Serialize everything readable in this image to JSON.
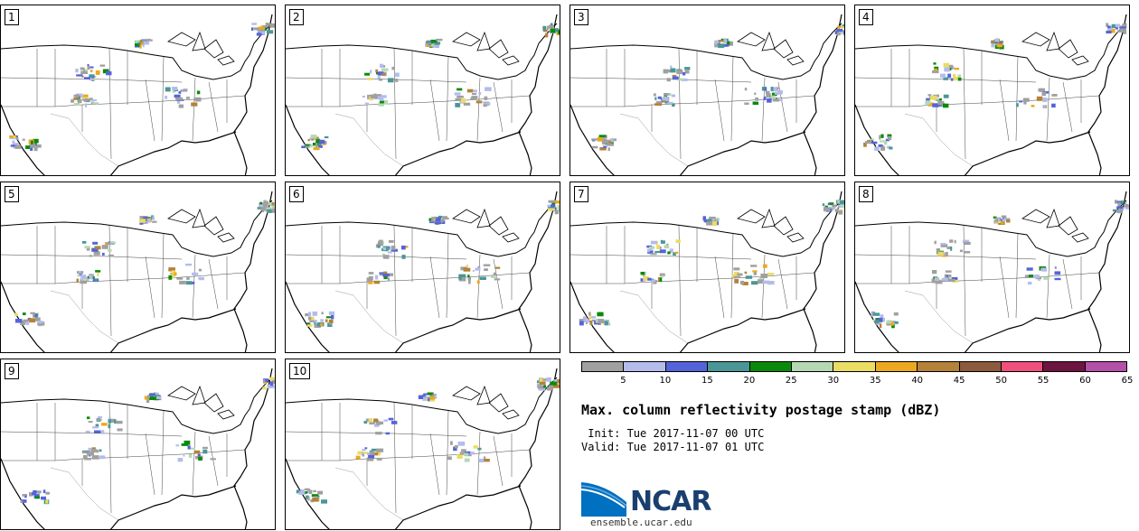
{
  "panels": [
    {
      "number": "1"
    },
    {
      "number": "2"
    },
    {
      "number": "3"
    },
    {
      "number": "4"
    },
    {
      "number": "5"
    },
    {
      "number": "6"
    },
    {
      "number": "7"
    },
    {
      "number": "8"
    },
    {
      "number": "9"
    },
    {
      "number": "10"
    }
  ],
  "colorbar": {
    "colors": [
      "#a0a0a0",
      "#b4bcec",
      "#5464d8",
      "#4a9696",
      "#0a8a0a",
      "#b4d8b4",
      "#ebdc64",
      "#eba820",
      "#b48238",
      "#8c5a3c",
      "#f0507c",
      "#6e1440",
      "#b450a8"
    ],
    "ticks": [
      "5",
      "10",
      "15",
      "20",
      "25",
      "30",
      "35",
      "40",
      "45",
      "50",
      "55",
      "60",
      "65"
    ]
  },
  "title": "Max. column reflectivity postage stamp (dBZ)",
  "init": " Init: Tue 2017-11-07 00 UTC",
  "valid": "Valid: Tue 2017-11-07 01 UTC",
  "logo": {
    "text": "NCAR",
    "url": "ensemble.ucar.edu"
  }
}
